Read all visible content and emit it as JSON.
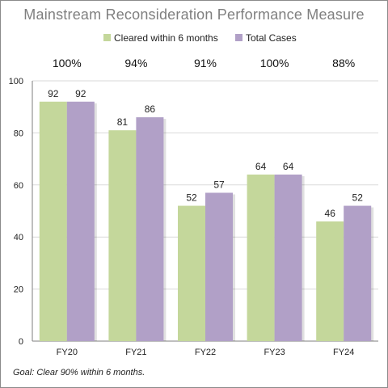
{
  "chart_data": {
    "type": "bar",
    "title": "Mainstream Reconsideration Performance Measure",
    "categories": [
      "FY20",
      "FY21",
      "FY22",
      "FY23",
      "FY24"
    ],
    "series": [
      {
        "name": "Cleared within 6 months",
        "values": [
          92,
          81,
          52,
          64,
          46
        ],
        "color": "#c4d79b"
      },
      {
        "name": "Total Cases",
        "values": [
          92,
          86,
          57,
          64,
          52
        ],
        "color": "#b1a0c7"
      }
    ],
    "percentages": [
      "100%",
      "94%",
      "91%",
      "100%",
      "88%"
    ],
    "ylim": [
      0,
      100
    ],
    "yticks": [
      0,
      20,
      40,
      60,
      80,
      100
    ],
    "grid": true,
    "legend_position": "top",
    "xlabel": "",
    "ylabel": "",
    "footnote": "Goal:  Clear 90% within 6 months."
  }
}
